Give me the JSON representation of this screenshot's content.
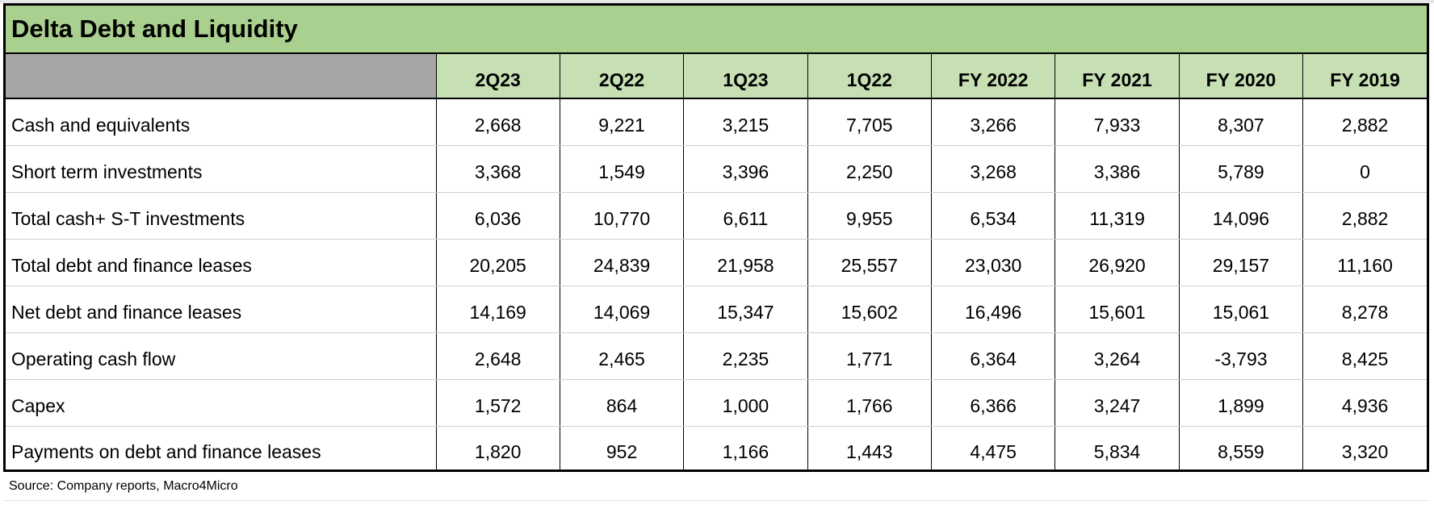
{
  "title": "Delta Debt and Liquidity",
  "columns": [
    "2Q23",
    "2Q22",
    "1Q23",
    "1Q22",
    "FY 2022",
    "FY 2021",
    "FY 2020",
    "FY 2019"
  ],
  "rows": [
    {
      "label": "Cash and equivalents",
      "values": [
        "2,668",
        "9,221",
        "3,215",
        "7,705",
        "3,266",
        "7,933",
        "8,307",
        "2,882"
      ]
    },
    {
      "label": "Short term investments",
      "values": [
        "3,368",
        "1,549",
        "3,396",
        "2,250",
        "3,268",
        "3,386",
        "5,789",
        "0"
      ]
    },
    {
      "label": "Total cash+ S-T investments",
      "values": [
        "6,036",
        "10,770",
        "6,611",
        "9,955",
        "6,534",
        "11,319",
        "14,096",
        "2,882"
      ]
    },
    {
      "label": "Total debt and finance leases",
      "values": [
        "20,205",
        "24,839",
        "21,958",
        "25,557",
        "23,030",
        "26,920",
        "29,157",
        "11,160"
      ]
    },
    {
      "label": "Net debt and finance leases",
      "values": [
        "14,169",
        "14,069",
        "15,347",
        "15,602",
        "16,496",
        "15,601",
        "15,061",
        "8,278"
      ]
    },
    {
      "label": "Operating cash flow",
      "values": [
        "2,648",
        "2,465",
        "2,235",
        "1,771",
        "6,364",
        "3,264",
        "-3,793",
        "8,425"
      ]
    },
    {
      "label": "Capex",
      "values": [
        "1,572",
        "864",
        "1,000",
        "1,766",
        "6,366",
        "3,247",
        "1,899",
        "4,936"
      ]
    },
    {
      "label": "Payments on debt and finance leases",
      "values": [
        "1,820",
        "952",
        "1,166",
        "1,443",
        "4,475",
        "5,834",
        "8,559",
        "3,320"
      ]
    }
  ],
  "source": "Source:  Company reports,  Macro4Micro",
  "colors": {
    "title_bg": "#a9d08e",
    "header_bg": "#c6e0b4",
    "corner_bg": "#a6a6a6"
  }
}
